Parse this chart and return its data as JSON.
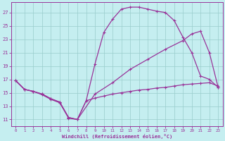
{
  "xlabel": "Windchill (Refroidissement éolien,°C)",
  "bg_color": "#c5eef0",
  "line_color": "#993399",
  "grid_color": "#99cccc",
  "xmin": -0.5,
  "xmax": 23.5,
  "ymin": 10.0,
  "ymax": 28.5,
  "yticks": [
    11,
    13,
    15,
    17,
    19,
    21,
    23,
    25,
    27
  ],
  "xticks": [
    0,
    1,
    2,
    3,
    4,
    5,
    6,
    7,
    8,
    9,
    10,
    11,
    12,
    13,
    14,
    15,
    16,
    17,
    18,
    19,
    20,
    21,
    22,
    23
  ],
  "curve1_x": [
    0,
    1,
    2,
    3,
    4,
    5,
    6,
    7,
    8,
    9,
    10,
    11,
    12,
    13,
    14,
    15,
    16,
    17,
    18,
    19,
    20,
    21,
    22,
    23
  ],
  "curve1_y": [
    16.8,
    15.5,
    15.2,
    14.7,
    14.0,
    13.5,
    11.2,
    11.0,
    13.8,
    19.3,
    24.0,
    26.0,
    27.5,
    27.8,
    27.8,
    27.5,
    27.2,
    27.0,
    25.8,
    23.3,
    21.0,
    17.5,
    17.0,
    15.8
  ],
  "curve2_x": [
    0,
    1,
    2,
    3,
    4,
    5,
    6,
    7,
    8,
    9,
    10,
    11,
    12,
    13,
    14,
    15,
    16,
    17,
    18,
    19,
    20,
    21,
    22,
    23
  ],
  "curve2_y": [
    16.8,
    15.5,
    15.2,
    14.8,
    14.1,
    13.6,
    11.3,
    11.0,
    13.8,
    14.2,
    14.5,
    14.8,
    15.0,
    15.2,
    15.4,
    15.5,
    15.7,
    15.8,
    16.0,
    16.2,
    16.3,
    16.4,
    16.5,
    16.0
  ],
  "curve3_x": [
    0,
    1,
    2,
    3,
    4,
    5,
    6,
    7,
    9,
    11,
    13,
    15,
    17,
    19,
    20,
    21,
    22,
    23
  ],
  "curve3_y": [
    16.8,
    15.5,
    15.2,
    14.8,
    14.1,
    13.6,
    11.3,
    11.0,
    14.8,
    16.5,
    18.5,
    20.0,
    21.5,
    22.8,
    23.8,
    24.2,
    21.0,
    15.8
  ]
}
